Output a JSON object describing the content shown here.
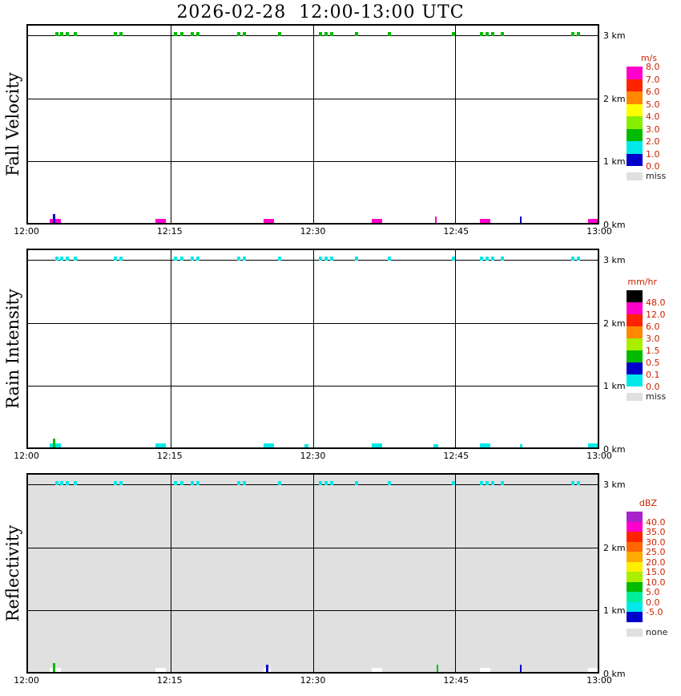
{
  "chart_data": {
    "type": "heatmap",
    "title": "2026-02-28  12:00-13:00 UTC",
    "x_ticks": [
      "12:00",
      "12:15",
      "12:30",
      "12:45",
      "13:00"
    ],
    "x_range_minutes": [
      0,
      60
    ],
    "y_tick_labels_top_to_bottom": [
      "3 km",
      "2 km",
      "1 km",
      "0 km"
    ],
    "y_range_km": [
      0,
      3
    ],
    "colorbar_label_color": "#CC2200",
    "missing_label_color": "#222222",
    "echo_times_3km_minutes": [
      2.9,
      3.4,
      4.0,
      4.8,
      9.0,
      9.6,
      15.4,
      16.0,
      17.1,
      17.7,
      22.0,
      22.6,
      26.3,
      30.6,
      31.2,
      31.8,
      34.4,
      37.9,
      44.6,
      47.6,
      48.2,
      48.8,
      49.8,
      57.2,
      57.8
    ],
    "panels": [
      {
        "name": "Fall Velocity",
        "unit": "m/s",
        "background": "#FFFFFF",
        "top_mark_color": "#00BB00",
        "colorbar": {
          "cells": [
            "#FF00CC",
            "#FF2200",
            "#FF8800",
            "#FFFF00",
            "#88EE00",
            "#00BB00",
            "#00E8E8",
            "#0000CC"
          ],
          "labels": [
            {
              "text": "8.0",
              "pos": 0
            },
            {
              "text": "7.0",
              "pos": 1
            },
            {
              "text": "6.0",
              "pos": 2
            },
            {
              "text": "5.0",
              "pos": 3
            },
            {
              "text": "4.0",
              "pos": 4
            },
            {
              "text": "3.0",
              "pos": 5
            },
            {
              "text": "2.0",
              "pos": 6
            },
            {
              "text": "1.0",
              "pos": 7
            },
            {
              "text": "0.0",
              "pos": 8
            }
          ],
          "missing_label": "miss",
          "missing_color": "#E0E0E0"
        },
        "surface_marks": [
          {
            "t": 2.3,
            "w": 1.2,
            "h": 5,
            "color": "#FF00CC"
          },
          {
            "t": 2.65,
            "w": 0.18,
            "h": 11,
            "color": "#0000CC"
          },
          {
            "t": 13.4,
            "w": 1.1,
            "h": 5,
            "color": "#FF00CC"
          },
          {
            "t": 24.8,
            "w": 1.1,
            "h": 5,
            "color": "#FF00CC"
          },
          {
            "t": 36.2,
            "w": 1.1,
            "h": 5,
            "color": "#FF00CC"
          },
          {
            "t": 42.9,
            "w": 0.18,
            "h": 8,
            "color": "#FF00CC"
          },
          {
            "t": 47.6,
            "w": 1.1,
            "h": 5,
            "color": "#FF00CC"
          },
          {
            "t": 51.8,
            "w": 0.18,
            "h": 8,
            "color": "#0000CC"
          },
          {
            "t": 59.0,
            "w": 1.0,
            "h": 5,
            "color": "#FF00CC"
          }
        ]
      },
      {
        "name": "Rain Intensity",
        "unit": "mm/hr",
        "background": "#FFFFFF",
        "top_mark_color": "#00E8E8",
        "colorbar": {
          "cells": [
            "#000000",
            "#FF00CC",
            "#FF2200",
            "#FF8800",
            "#AAEE00",
            "#00BB00",
            "#0000CC",
            "#00E8E8"
          ],
          "labels": [
            {
              "text": "48.0",
              "pos": 1
            },
            {
              "text": "12.0",
              "pos": 2
            },
            {
              "text": "6.0",
              "pos": 3
            },
            {
              "text": "3.0",
              "pos": 4
            },
            {
              "text": "1.5",
              "pos": 5
            },
            {
              "text": "0.5",
              "pos": 6
            },
            {
              "text": "0.1",
              "pos": 7
            },
            {
              "text": "0.0",
              "pos": 8
            }
          ],
          "missing_label": "miss",
          "missing_color": "#E0E0E0"
        },
        "surface_marks": [
          {
            "t": 2.3,
            "w": 1.2,
            "h": 5,
            "color": "#00E8E8"
          },
          {
            "t": 2.65,
            "w": 0.18,
            "h": 11,
            "color": "#00BB00"
          },
          {
            "t": 13.4,
            "w": 1.1,
            "h": 5,
            "color": "#00E8E8"
          },
          {
            "t": 24.8,
            "w": 1.1,
            "h": 5,
            "color": "#00E8E8"
          },
          {
            "t": 29.1,
            "w": 0.4,
            "h": 4,
            "color": "#00E8E8"
          },
          {
            "t": 36.2,
            "w": 1.1,
            "h": 5,
            "color": "#00E8E8"
          },
          {
            "t": 42.7,
            "w": 0.5,
            "h": 4,
            "color": "#00E8E8"
          },
          {
            "t": 47.6,
            "w": 1.1,
            "h": 5,
            "color": "#00E8E8"
          },
          {
            "t": 51.8,
            "w": 0.3,
            "h": 4,
            "color": "#00E8E8"
          },
          {
            "t": 59.0,
            "w": 1.0,
            "h": 5,
            "color": "#00E8E8"
          }
        ]
      },
      {
        "name": "Reflectivity",
        "unit": "dBZ",
        "background": "#E0E0E0",
        "top_mark_color": "#00E8E8",
        "colorbar": {
          "cells": [
            "#AA22CC",
            "#FF00CC",
            "#FF2200",
            "#FF6600",
            "#FFAA00",
            "#FFEE00",
            "#AAEE00",
            "#00BB00",
            "#00EE99",
            "#00E8E8",
            "#0000CC"
          ],
          "labels": [
            {
              "text": "40.0",
              "pos": 1
            },
            {
              "text": "35.0",
              "pos": 2
            },
            {
              "text": "30.0",
              "pos": 3
            },
            {
              "text": "25.0",
              "pos": 4
            },
            {
              "text": "20.0",
              "pos": 5
            },
            {
              "text": "15.0",
              "pos": 6
            },
            {
              "text": "10.0",
              "pos": 7
            },
            {
              "text": "5.0",
              "pos": 8
            },
            {
              "text": "0.0",
              "pos": 9
            },
            {
              "text": "-5.0",
              "pos": 10
            }
          ],
          "missing_label": "none",
          "missing_color": "#E0E0E0"
        },
        "surface_marks": [
          {
            "t": 2.3,
            "w": 1.2,
            "h": 5,
            "color": "#FFFFFF"
          },
          {
            "t": 2.65,
            "w": 0.18,
            "h": 11,
            "color": "#00BB00"
          },
          {
            "t": 13.4,
            "w": 1.1,
            "h": 5,
            "color": "#FFFFFF"
          },
          {
            "t": 24.8,
            "w": 0.8,
            "h": 5,
            "color": "#FFFFFF"
          },
          {
            "t": 25.1,
            "w": 0.18,
            "h": 9,
            "color": "#0000CC"
          },
          {
            "t": 36.2,
            "w": 1.1,
            "h": 5,
            "color": "#FFFFFF"
          },
          {
            "t": 43.0,
            "w": 0.18,
            "h": 9,
            "color": "#00BB00"
          },
          {
            "t": 47.6,
            "w": 1.1,
            "h": 5,
            "color": "#FFFFFF"
          },
          {
            "t": 51.8,
            "w": 0.18,
            "h": 9,
            "color": "#0000CC"
          },
          {
            "t": 59.0,
            "w": 1.0,
            "h": 5,
            "color": "#FFFFFF"
          }
        ]
      }
    ]
  }
}
